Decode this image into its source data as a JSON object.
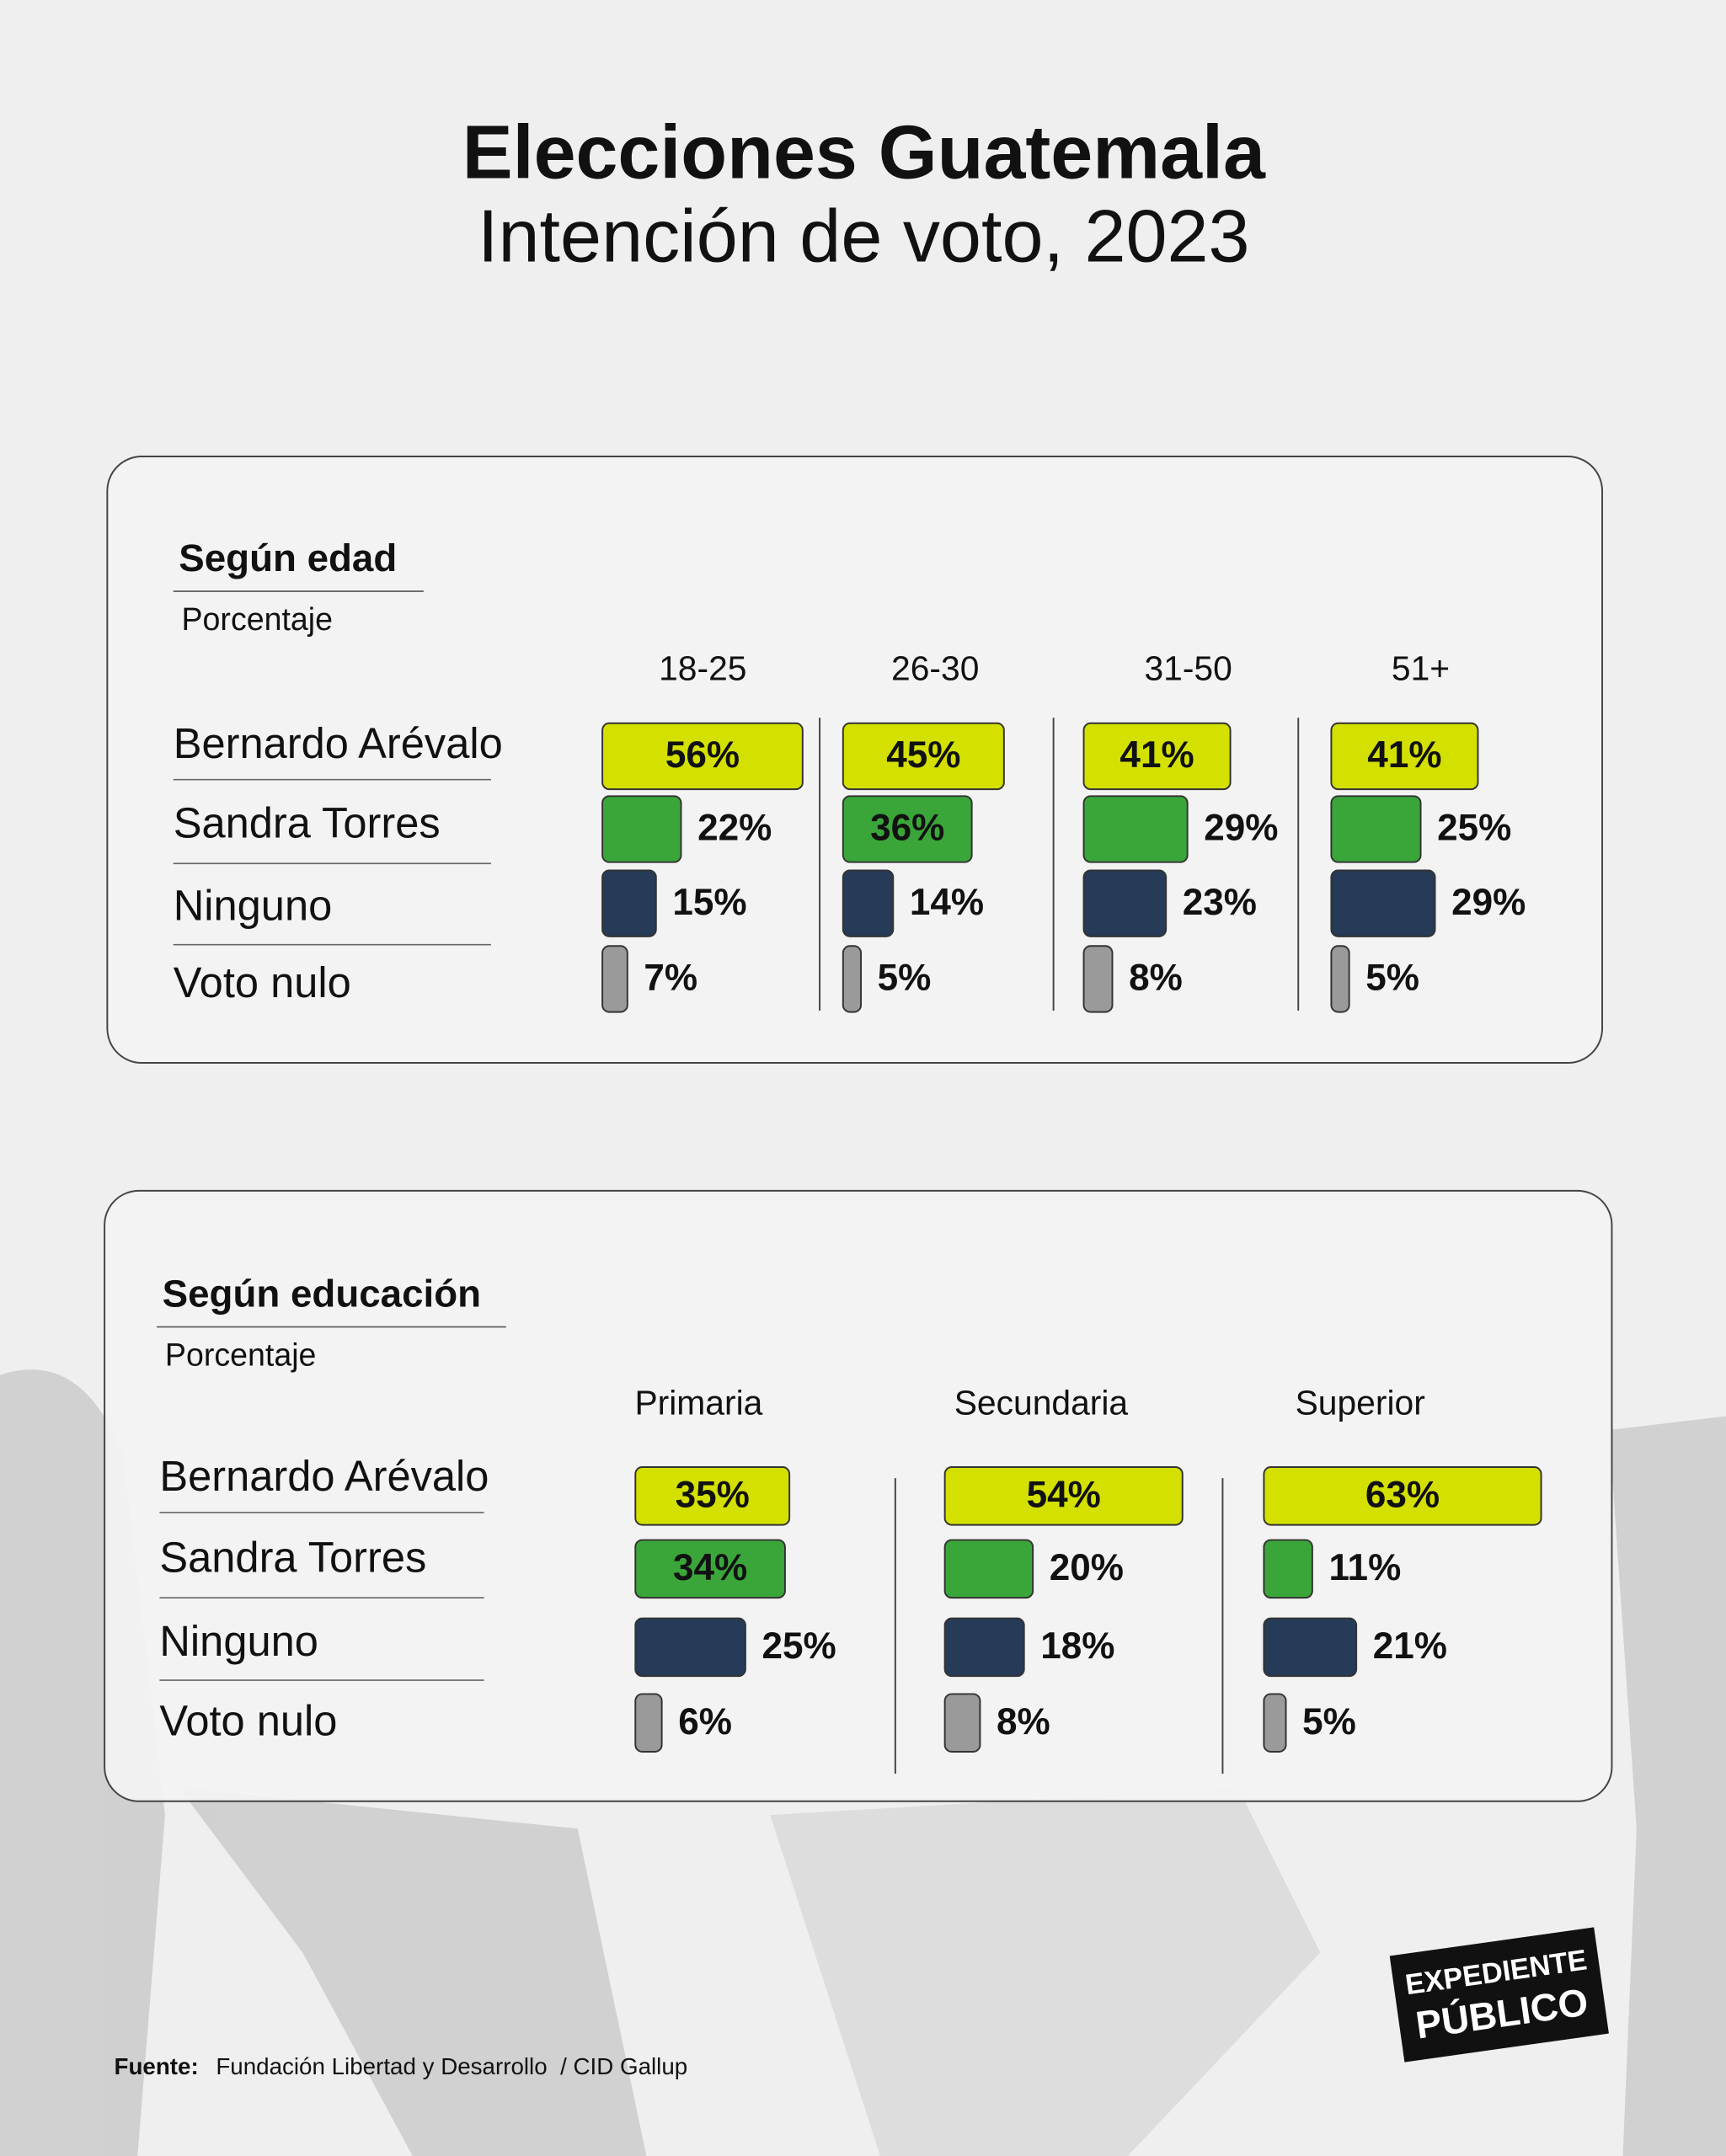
{
  "title": "Elecciones Guatemala",
  "subtitle": "Intención de voto, 2023",
  "source_label": "Fuente:",
  "source": "Fundación Libertad y Desarrollo  / CID Gallup",
  "logo": [
    "EXPEDIENTE",
    "PÚBLICO"
  ],
  "chart_data": [
    {
      "type": "bar",
      "title": "Según edad",
      "subtitle": "Porcentaje",
      "categories": [
        "Bernardo Arévalo",
        "Sandra Torres",
        "Ninguno",
        "Voto nulo"
      ],
      "colors": [
        "#d4e000",
        "#3aa63a",
        "#263b57",
        "#9a9a9a"
      ],
      "series": [
        {
          "name": "18-25",
          "values": [
            56,
            22,
            15,
            7
          ],
          "value_labels": [
            "56%",
            "22%",
            "15%",
            "7%"
          ]
        },
        {
          "name": "26-30",
          "values": [
            45,
            36,
            14,
            5
          ],
          "value_labels": [
            "45%",
            "36%",
            "14%",
            "5%"
          ]
        },
        {
          "name": "31-50",
          "values": [
            41,
            29,
            23,
            8
          ],
          "value_labels": [
            "41%",
            "29%",
            "23%",
            "8%"
          ]
        },
        {
          "name": "51+",
          "values": [
            41,
            25,
            29,
            5
          ],
          "value_labels": [
            "41%",
            "25%",
            "29%",
            "5%"
          ]
        }
      ]
    },
    {
      "type": "bar",
      "title": "Según educación",
      "subtitle": "Porcentaje",
      "categories": [
        "Bernardo Arévalo",
        "Sandra Torres",
        "Ninguno",
        "Voto nulo"
      ],
      "colors": [
        "#d4e000",
        "#3aa63a",
        "#263b57",
        "#9a9a9a"
      ],
      "series": [
        {
          "name": "Primaria",
          "values": [
            35,
            34,
            25,
            6
          ],
          "value_labels": [
            "35%",
            "34%",
            "25%",
            "6%"
          ]
        },
        {
          "name": "Secundaria",
          "values": [
            54,
            20,
            18,
            8
          ],
          "value_labels": [
            "54%",
            "20%",
            "18%",
            "8%"
          ]
        },
        {
          "name": "Superior",
          "values": [
            63,
            11,
            21,
            5
          ],
          "value_labels": [
            "63%",
            "11%",
            "21%",
            "5%"
          ]
        }
      ]
    }
  ]
}
